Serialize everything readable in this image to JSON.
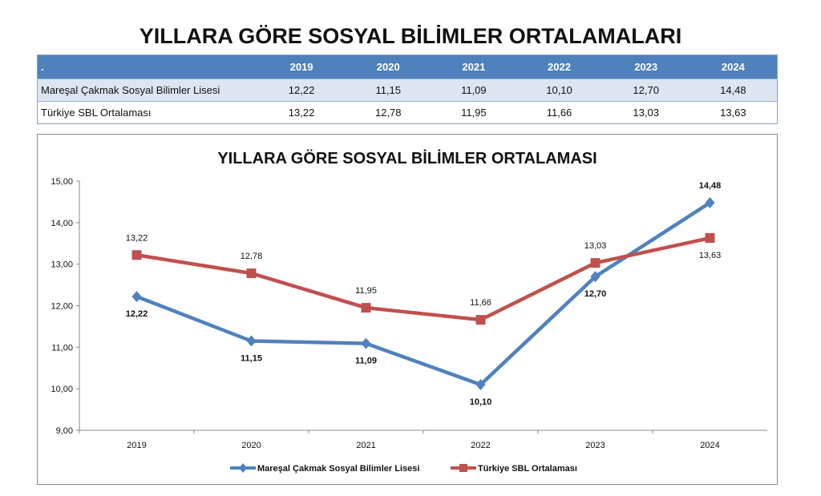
{
  "title": "YILLARA GÖRE SOSYAL BİLİMLER ORTALAMALARI",
  "table": {
    "corner": ".",
    "years": [
      "2019",
      "2020",
      "2021",
      "2022",
      "2023",
      "2024"
    ],
    "rows": [
      {
        "label": "Mareşal Çakmak Sosyal Bilimler Lisesi",
        "values": [
          "12,22",
          "11,15",
          "11,09",
          "10,10",
          "12,70",
          "14,48"
        ]
      },
      {
        "label": "Türkiye SBL Ortalaması",
        "values": [
          "13,22",
          "12,78",
          "11,95",
          "11,66",
          "13,03",
          "13,63"
        ]
      }
    ]
  },
  "chart_data": {
    "type": "line",
    "title": "YILLARA GÖRE SOSYAL BİLİMLER ORTALAMASI",
    "categories": [
      "2019",
      "2020",
      "2021",
      "2022",
      "2023",
      "2024"
    ],
    "ylim": [
      9,
      15
    ],
    "yticks": [
      "9,00",
      "10,00",
      "11,00",
      "12,00",
      "13,00",
      "14,00",
      "15,00"
    ],
    "legend_position": "bottom",
    "series": [
      {
        "name": "Mareşal Çakmak Sosyal Bilimler Lisesi",
        "color": "#4f81bd",
        "marker": "diamond",
        "values": [
          12.22,
          11.15,
          11.09,
          10.1,
          12.7,
          14.48
        ],
        "labels": [
          "12,22",
          "11,15",
          "11,09",
          "10,10",
          "12,70",
          "14,48"
        ]
      },
      {
        "name": "Türkiye SBL Ortalaması",
        "color": "#c0504d",
        "marker": "square",
        "values": [
          13.22,
          12.78,
          11.95,
          11.66,
          13.03,
          13.63
        ],
        "labels": [
          "13,22",
          "12,78",
          "11,95",
          "11,66",
          "13,03",
          "13,63"
        ]
      }
    ]
  }
}
